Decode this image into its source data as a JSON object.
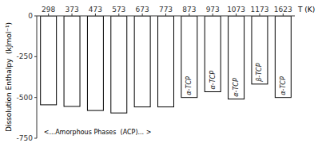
{
  "chart_data": {
    "type": "bar",
    "categories": [
      "298",
      "373",
      "473",
      "573",
      "673",
      "773",
      "873",
      "973",
      "1073",
      "1173",
      "1623"
    ],
    "values": [
      -545,
      -555,
      -580,
      -595,
      -558,
      -558,
      -500,
      -465,
      -510,
      -418,
      -500
    ],
    "bar_labels": [
      null,
      null,
      null,
      null,
      null,
      null,
      "α-TCP",
      "α-TCP",
      "α-TCP",
      "β-TCP",
      "α-TCP"
    ],
    "annotation": "<...Amorphous Phases  (ACP)... >",
    "y_label": "Dissolution Enthalpy  (kJmol⁻¹)",
    "x_label": "T (K)",
    "color": "white",
    "ylim": [
      -750,
      0
    ],
    "yticks": [
      -750,
      -500,
      -250,
      0
    ]
  }
}
